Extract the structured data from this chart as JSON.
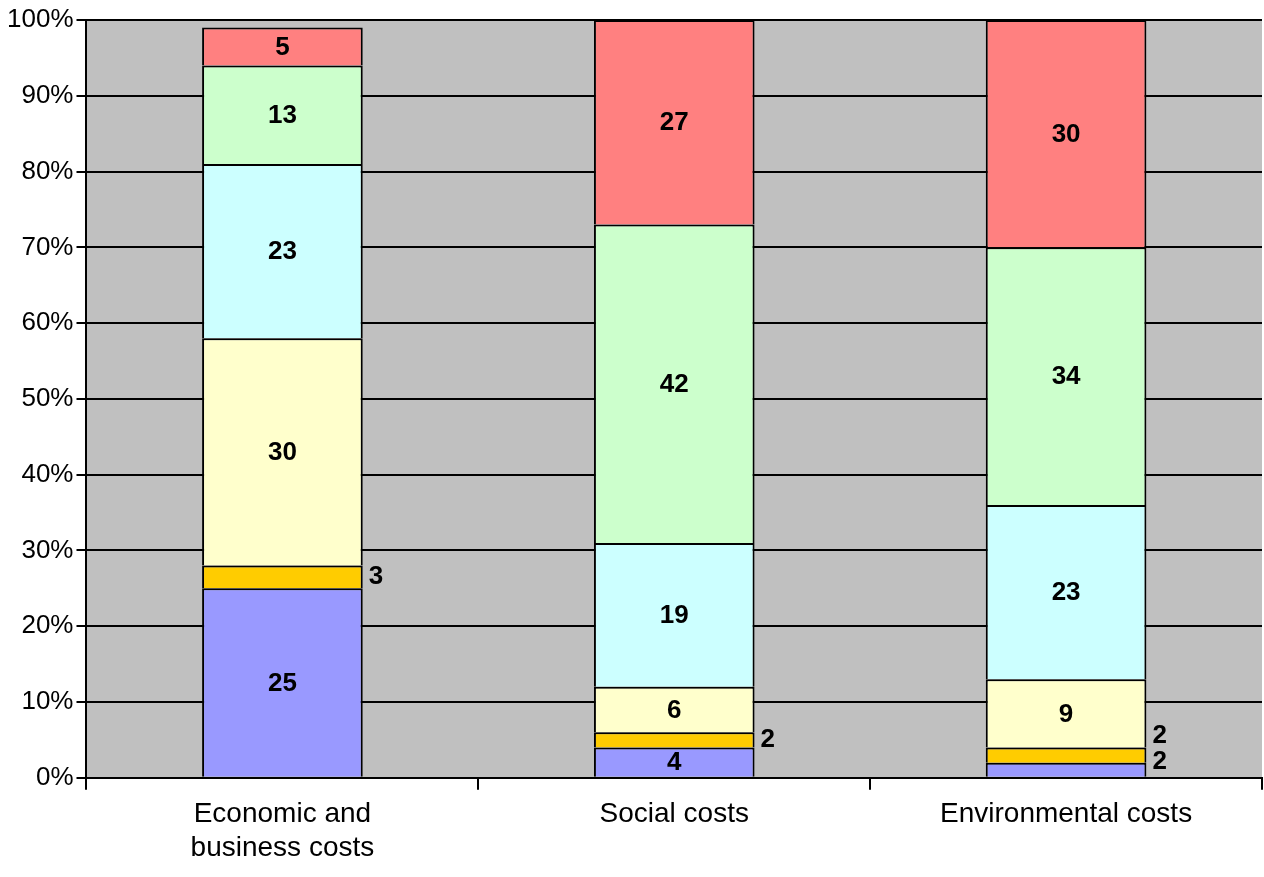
{
  "chart_data": {
    "type": "bar",
    "stacked": true,
    "categories": [
      "Economic and business costs",
      "Social costs",
      "Environmental costs"
    ],
    "series": [
      {
        "color": "#9999ff",
        "values": [
          25,
          4,
          2
        ]
      },
      {
        "color": "#ffcc00",
        "values": [
          3,
          2,
          2
        ]
      },
      {
        "color": "#ffffcc",
        "values": [
          30,
          6,
          9
        ]
      },
      {
        "color": "#ccffff",
        "values": [
          23,
          19,
          23
        ]
      },
      {
        "color": "#ccffcc",
        "values": [
          13,
          42,
          34
        ]
      },
      {
        "color": "#ff8080",
        "values": [
          5,
          27,
          30
        ]
      }
    ],
    "ylim": [
      0,
      100
    ],
    "yticks": [
      {
        "value": 0,
        "label": "0%"
      },
      {
        "value": 10,
        "label": "10%"
      },
      {
        "value": 20,
        "label": "20%"
      },
      {
        "value": 30,
        "label": "30%"
      },
      {
        "value": 40,
        "label": "40%"
      },
      {
        "value": 50,
        "label": "50%"
      },
      {
        "value": 60,
        "label": "60%"
      },
      {
        "value": 70,
        "label": "70%"
      },
      {
        "value": 80,
        "label": "80%"
      },
      {
        "value": 90,
        "label": "90%"
      },
      {
        "value": 100,
        "label": "100%"
      }
    ],
    "grid": "y",
    "legend": false,
    "data_labels": true
  }
}
